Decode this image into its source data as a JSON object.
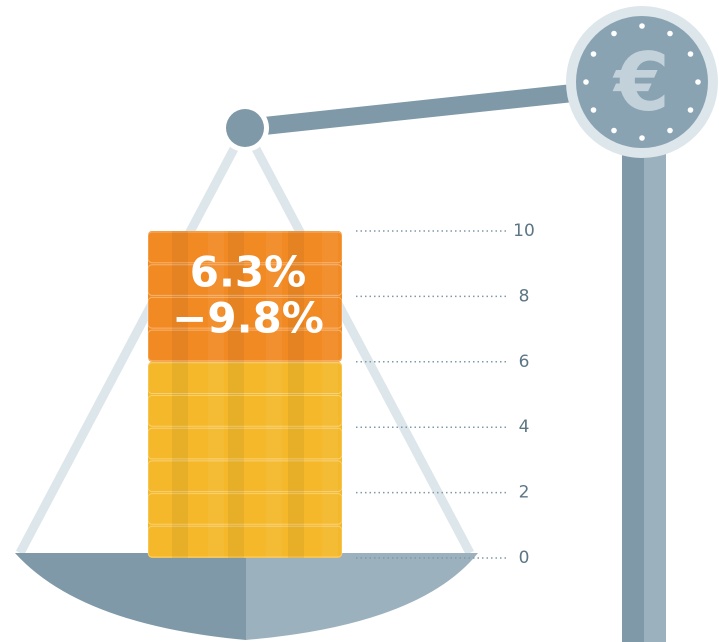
{
  "chart_data": {
    "type": "bar",
    "series": [
      {
        "color": "#f4b82a",
        "values": [
          6
        ]
      },
      {
        "color": "#f28a24",
        "values": [
          4
        ]
      }
    ],
    "annotations": [
      "6.3%",
      "−9.8%"
    ],
    "ylim": [
      0,
      10
    ],
    "yticks": [
      0,
      2,
      4,
      6,
      8,
      10
    ]
  }
}
